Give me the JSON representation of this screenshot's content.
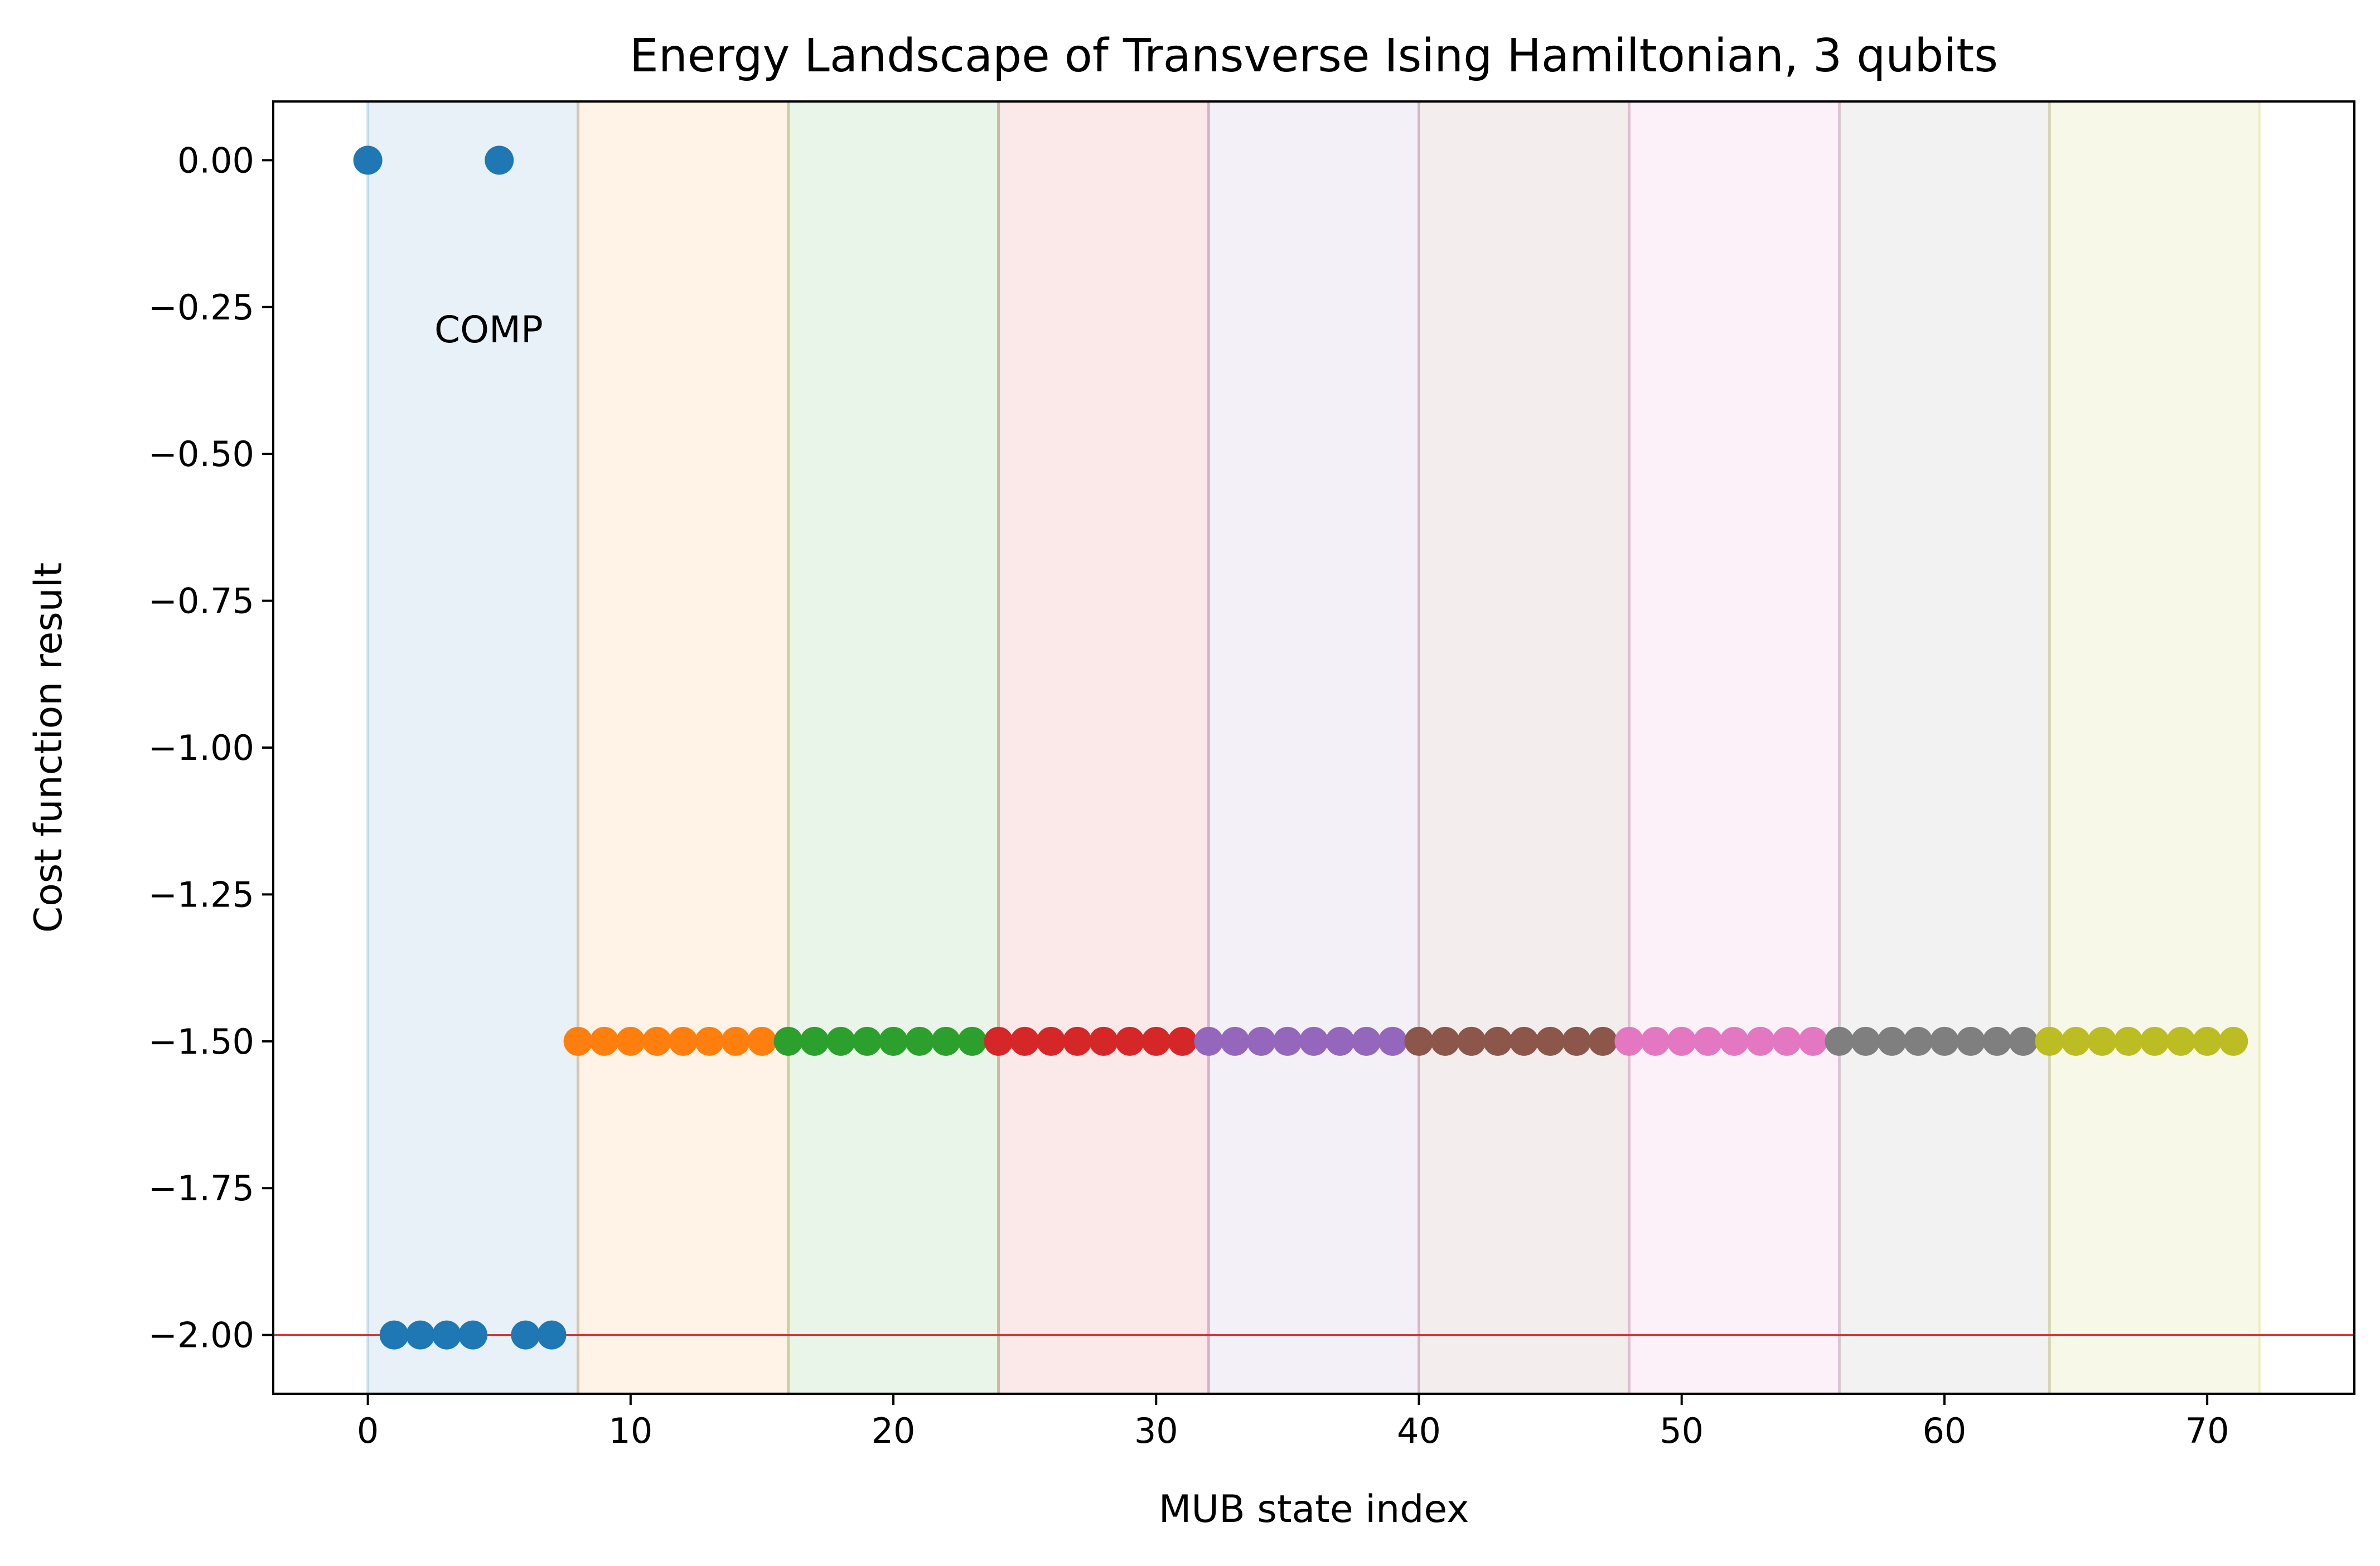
{
  "chart_data": {
    "type": "scatter",
    "title": "Energy Landscape of Transverse Ising Hamiltonian, 3 qubits",
    "xlabel": "MUB state index",
    "ylabel": "Cost function result",
    "xlim": [
      -3.6,
      75.6
    ],
    "ylim": [
      -2.1,
      0.1
    ],
    "xticks": [
      0,
      10,
      20,
      30,
      40,
      50,
      60,
      70
    ],
    "xtick_labels": [
      "0",
      "10",
      "20",
      "30",
      "40",
      "50",
      "60",
      "70"
    ],
    "yticks": [
      0,
      -0.25,
      -0.5,
      -0.75,
      -1.0,
      -1.25,
      -1.5,
      -1.75,
      -2.0
    ],
    "ytick_labels": [
      "0.00",
      "−0.25",
      "−0.50",
      "−0.75",
      "−1.00",
      "−1.25",
      "−1.50",
      "−1.75",
      "−2.00"
    ],
    "grid": false,
    "reference_line": {
      "y": -2.0,
      "color": "#d62728"
    },
    "annotation": {
      "text": "COMP",
      "x": 4.6,
      "y": -0.31
    },
    "bands": [
      {
        "x0": 0,
        "x1": 8,
        "color": "#1f77b4"
      },
      {
        "x0": 8,
        "x1": 16,
        "color": "#ff7f0e"
      },
      {
        "x0": 16,
        "x1": 24,
        "color": "#2ca02c"
      },
      {
        "x0": 24,
        "x1": 32,
        "color": "#d62728"
      },
      {
        "x0": 32,
        "x1": 40,
        "color": "#9467bd"
      },
      {
        "x0": 40,
        "x1": 48,
        "color": "#8c564b"
      },
      {
        "x0": 48,
        "x1": 56,
        "color": "#e377c2"
      },
      {
        "x0": 56,
        "x1": 64,
        "color": "#7f7f7f"
      },
      {
        "x0": 64,
        "x1": 72,
        "color": "#bcbd22"
      }
    ],
    "series": [
      {
        "color": "#1f77b4",
        "x": [
          0,
          1,
          2,
          3,
          4,
          5,
          6,
          7
        ],
        "y": [
          0,
          -2,
          -2,
          -2,
          -2,
          0,
          -2,
          -2
        ]
      },
      {
        "color": "#ff7f0e",
        "x": [
          8,
          9,
          10,
          11,
          12,
          13,
          14,
          15
        ],
        "y": [
          -1.5,
          -1.5,
          -1.5,
          -1.5,
          -1.5,
          -1.5,
          -1.5,
          -1.5
        ]
      },
      {
        "color": "#2ca02c",
        "x": [
          16,
          17,
          18,
          19,
          20,
          21,
          22,
          23
        ],
        "y": [
          -1.5,
          -1.5,
          -1.5,
          -1.5,
          -1.5,
          -1.5,
          -1.5,
          -1.5
        ]
      },
      {
        "color": "#d62728",
        "x": [
          24,
          25,
          26,
          27,
          28,
          29,
          30,
          31
        ],
        "y": [
          -1.5,
          -1.5,
          -1.5,
          -1.5,
          -1.5,
          -1.5,
          -1.5,
          -1.5
        ]
      },
      {
        "color": "#9467bd",
        "x": [
          32,
          33,
          34,
          35,
          36,
          37,
          38,
          39
        ],
        "y": [
          -1.5,
          -1.5,
          -1.5,
          -1.5,
          -1.5,
          -1.5,
          -1.5,
          -1.5
        ]
      },
      {
        "color": "#8c564b",
        "x": [
          40,
          41,
          42,
          43,
          44,
          45,
          46,
          47
        ],
        "y": [
          -1.5,
          -1.5,
          -1.5,
          -1.5,
          -1.5,
          -1.5,
          -1.5,
          -1.5
        ]
      },
      {
        "color": "#e377c2",
        "x": [
          48,
          49,
          50,
          51,
          52,
          53,
          54,
          55
        ],
        "y": [
          -1.5,
          -1.5,
          -1.5,
          -1.5,
          -1.5,
          -1.5,
          -1.5,
          -1.5
        ]
      },
      {
        "color": "#7f7f7f",
        "x": [
          56,
          57,
          58,
          59,
          60,
          61,
          62,
          63
        ],
        "y": [
          -1.5,
          -1.5,
          -1.5,
          -1.5,
          -1.5,
          -1.5,
          -1.5,
          -1.5
        ]
      },
      {
        "color": "#bcbd22",
        "x": [
          64,
          65,
          66,
          67,
          68,
          69,
          70,
          71
        ],
        "y": [
          -1.5,
          -1.5,
          -1.5,
          -1.5,
          -1.5,
          -1.5,
          -1.5,
          -1.5
        ]
      }
    ]
  }
}
